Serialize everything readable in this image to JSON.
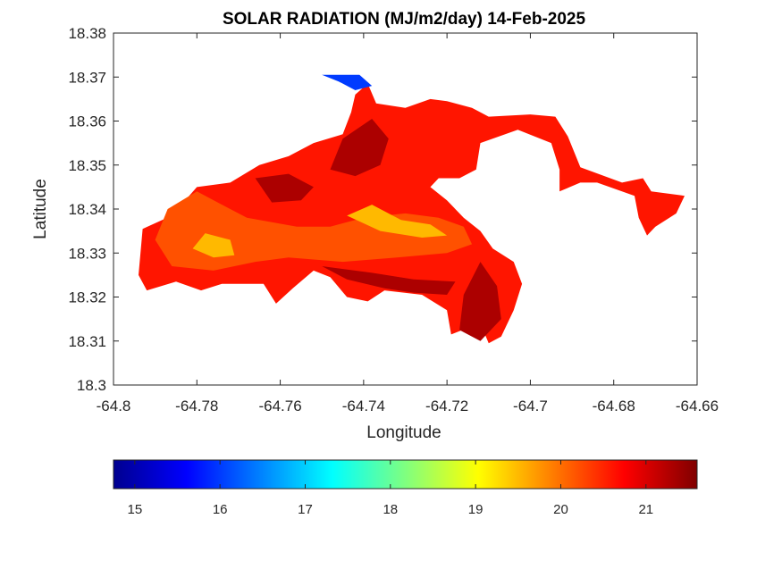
{
  "chart_data": {
    "type": "heatmap",
    "title": "SOLAR RADIATION (MJ/m2/day) 14-Feb-2025",
    "xlabel": "Longitude",
    "ylabel": "Latitude",
    "xlim": [
      -64.8,
      -64.66
    ],
    "ylim": [
      18.3,
      18.38
    ],
    "x_ticks": [
      "-64.8",
      "-64.78",
      "-64.76",
      "-64.74",
      "-64.72",
      "-64.7",
      "-64.68",
      "-64.66"
    ],
    "y_ticks": [
      "18.3",
      "18.31",
      "18.32",
      "18.33",
      "18.34",
      "18.35",
      "18.36",
      "18.37",
      "18.38"
    ],
    "colorbar": {
      "colormap": "jet",
      "range": [
        14.75,
        21.6
      ],
      "ticks": [
        "15",
        "16",
        "17",
        "18",
        "19",
        "20",
        "21"
      ],
      "orientation": "horizontal",
      "placement": "bottom"
    },
    "regions": [
      {
        "name": "land-mass",
        "value": 20.6,
        "outline": [
          [
            -64.793,
            18.3355
          ],
          [
            -64.786,
            18.3385
          ],
          [
            -64.78,
            18.345
          ],
          [
            -64.772,
            18.346
          ],
          [
            -64.765,
            18.35
          ],
          [
            -64.758,
            18.352
          ],
          [
            -64.752,
            18.355
          ],
          [
            -64.745,
            18.357
          ],
          [
            -64.743,
            18.362
          ],
          [
            -64.742,
            18.366
          ],
          [
            -64.739,
            18.3685
          ],
          [
            -64.737,
            18.364
          ],
          [
            -64.73,
            18.363
          ],
          [
            -64.724,
            18.365
          ],
          [
            -64.72,
            18.3645
          ],
          [
            -64.714,
            18.363
          ],
          [
            -64.71,
            18.361
          ],
          [
            -64.7,
            18.3615
          ],
          [
            -64.694,
            18.361
          ],
          [
            -64.691,
            18.3565
          ],
          [
            -64.688,
            18.3495
          ],
          [
            -64.678,
            18.346
          ],
          [
            -64.673,
            18.347
          ],
          [
            -64.671,
            18.344
          ],
          [
            -64.663,
            18.343
          ],
          [
            -64.665,
            18.339
          ],
          [
            -64.67,
            18.336
          ],
          [
            -64.672,
            18.334
          ],
          [
            -64.674,
            18.338
          ],
          [
            -64.675,
            18.343
          ],
          [
            -64.684,
            18.346
          ],
          [
            -64.688,
            18.346
          ],
          [
            -64.693,
            18.344
          ],
          [
            -64.693,
            18.349
          ],
          [
            -64.695,
            18.355
          ],
          [
            -64.703,
            18.358
          ],
          [
            -64.712,
            18.355
          ],
          [
            -64.713,
            18.349
          ],
          [
            -64.717,
            18.347
          ],
          [
            -64.722,
            18.347
          ],
          [
            -64.724,
            18.345
          ],
          [
            -64.72,
            18.342
          ],
          [
            -64.716,
            18.338
          ],
          [
            -64.712,
            18.335
          ],
          [
            -64.709,
            18.331
          ],
          [
            -64.704,
            18.328
          ],
          [
            -64.702,
            18.323
          ],
          [
            -64.704,
            18.317
          ],
          [
            -64.707,
            18.311
          ],
          [
            -64.71,
            18.3095
          ],
          [
            -64.712,
            18.314
          ],
          [
            -64.715,
            18.313
          ],
          [
            -64.719,
            18.3115
          ],
          [
            -64.72,
            18.317
          ],
          [
            -64.726,
            18.3205
          ],
          [
            -64.735,
            18.3215
          ],
          [
            -64.739,
            18.319
          ],
          [
            -64.744,
            18.32
          ],
          [
            -64.748,
            18.3245
          ],
          [
            -64.752,
            18.326
          ],
          [
            -64.757,
            18.322
          ],
          [
            -64.761,
            18.3185
          ],
          [
            -64.764,
            18.323
          ],
          [
            -64.774,
            18.323
          ],
          [
            -64.779,
            18.3215
          ],
          [
            -64.785,
            18.3235
          ],
          [
            -64.792,
            18.3215
          ],
          [
            -64.794,
            18.325
          ],
          [
            -64.793,
            18.3355
          ]
        ]
      },
      {
        "name": "orange-west",
        "value": 20.2,
        "outline": [
          [
            -64.79,
            18.333
          ],
          [
            -64.787,
            18.34
          ],
          [
            -64.78,
            18.344
          ],
          [
            -64.774,
            18.341
          ],
          [
            -64.768,
            18.338
          ],
          [
            -64.762,
            18.337
          ],
          [
            -64.756,
            18.336
          ],
          [
            -64.748,
            18.336
          ],
          [
            -64.74,
            18.338
          ],
          [
            -64.73,
            18.339
          ],
          [
            -64.722,
            18.338
          ],
          [
            -64.716,
            18.336
          ],
          [
            -64.714,
            18.332
          ],
          [
            -64.72,
            18.33
          ],
          [
            -64.732,
            18.329
          ],
          [
            -64.745,
            18.328
          ],
          [
            -64.758,
            18.329
          ],
          [
            -64.766,
            18.328
          ],
          [
            -64.776,
            18.326
          ],
          [
            -64.786,
            18.327
          ],
          [
            -64.79,
            18.333
          ]
        ]
      },
      {
        "name": "yellow-west",
        "value": 19.5,
        "outline": [
          [
            -64.781,
            18.331
          ],
          [
            -64.778,
            18.3345
          ],
          [
            -64.772,
            18.333
          ],
          [
            -64.771,
            18.3295
          ],
          [
            -64.776,
            18.329
          ],
          [
            -64.781,
            18.331
          ]
        ]
      },
      {
        "name": "yellow-center",
        "value": 19.5,
        "outline": [
          [
            -64.744,
            18.3385
          ],
          [
            -64.738,
            18.341
          ],
          [
            -64.731,
            18.3375
          ],
          [
            -64.724,
            18.3365
          ],
          [
            -64.72,
            18.334
          ],
          [
            -64.726,
            18.3335
          ],
          [
            -64.736,
            18.335
          ],
          [
            -64.744,
            18.3385
          ]
        ]
      },
      {
        "name": "darkred-north",
        "value": 21.3,
        "outline": [
          [
            -64.745,
            18.356
          ],
          [
            -64.738,
            18.3605
          ],
          [
            -64.734,
            18.356
          ],
          [
            -64.736,
            18.35
          ],
          [
            -64.742,
            18.3475
          ],
          [
            -64.748,
            18.349
          ],
          [
            -64.745,
            18.356
          ]
        ]
      },
      {
        "name": "darkred-center",
        "value": 21.3,
        "outline": [
          [
            -64.766,
            18.347
          ],
          [
            -64.758,
            18.348
          ],
          [
            -64.752,
            18.345
          ],
          [
            -64.755,
            18.342
          ],
          [
            -64.762,
            18.3415
          ],
          [
            -64.766,
            18.347
          ]
        ]
      },
      {
        "name": "darkred-south",
        "value": 21.3,
        "outline": [
          [
            -64.75,
            18.327
          ],
          [
            -64.744,
            18.324
          ],
          [
            -64.735,
            18.322
          ],
          [
            -64.728,
            18.321
          ],
          [
            -64.72,
            18.3205
          ],
          [
            -64.718,
            18.3235
          ],
          [
            -64.728,
            18.324
          ],
          [
            -64.738,
            18.3255
          ],
          [
            -64.75,
            18.327
          ]
        ]
      },
      {
        "name": "darkred-southeast",
        "value": 21.3,
        "outline": [
          [
            -64.712,
            18.328
          ],
          [
            -64.708,
            18.3225
          ],
          [
            -64.707,
            18.315
          ],
          [
            -64.712,
            18.31
          ],
          [
            -64.717,
            18.3125
          ],
          [
            -64.716,
            18.3205
          ],
          [
            -64.712,
            18.328
          ]
        ]
      },
      {
        "name": "blue-yellow-tip",
        "value": 16.0,
        "outline": [
          [
            -64.75,
            18.3705
          ],
          [
            -64.741,
            18.3705
          ],
          [
            -64.738,
            18.368
          ],
          [
            -64.742,
            18.367
          ],
          [
            -64.746,
            18.369
          ],
          [
            -64.75,
            18.3705
          ]
        ]
      }
    ]
  }
}
